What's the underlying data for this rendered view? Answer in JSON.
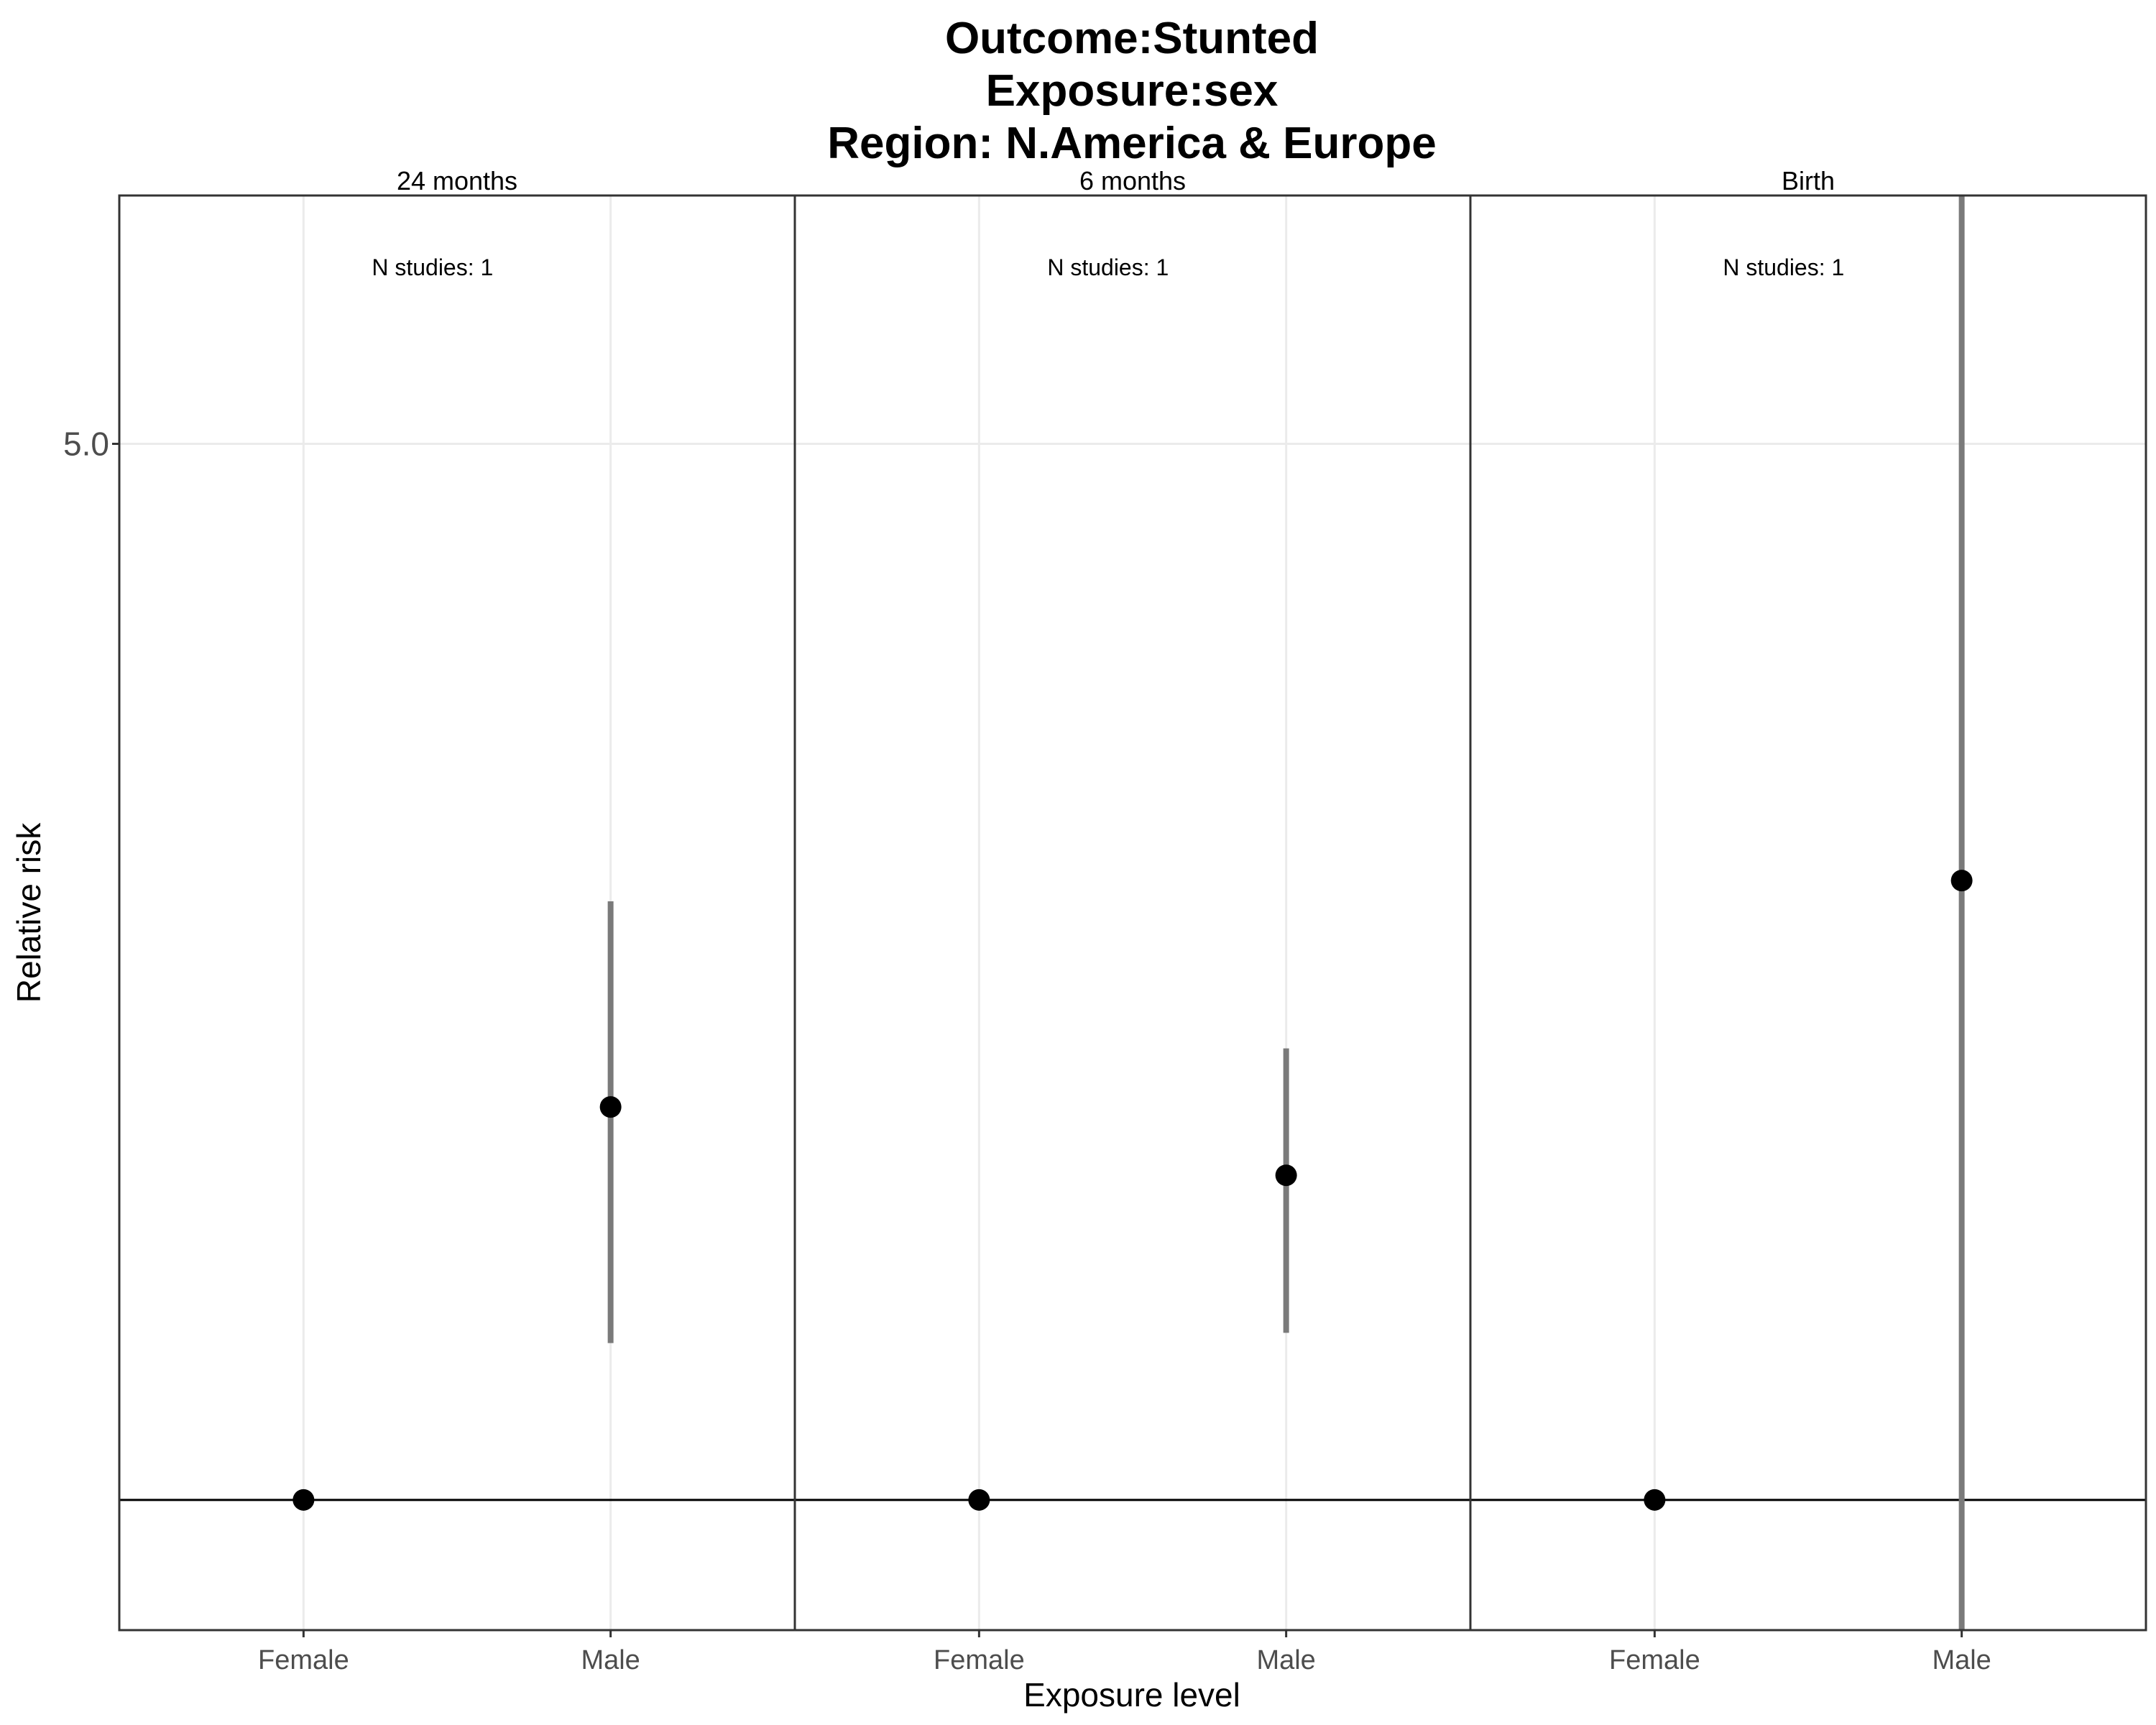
{
  "chart_data": {
    "type": "scatter",
    "subtype": "point-range faceted",
    "title": [
      "Outcome:Stunted",
      "Exposure:sex",
      "Region: N.America & Europe"
    ],
    "xlabel": "Exposure level",
    "ylabel": "Relative risk",
    "y_scale": "log",
    "ylim": [
      0.82,
      7.3
    ],
    "y_ticks": [
      5.0
    ],
    "y_tick_labels": [
      "5.0"
    ],
    "reference_line": 1,
    "grid": true,
    "categories": [
      "Female",
      "Male"
    ],
    "panels": [
      {
        "label": "24 months",
        "annotation": "N studies: 1",
        "points": [
          {
            "x": "Female",
            "y": 1.0,
            "lower": null,
            "upper": null
          },
          {
            "x": "Male",
            "y": 1.82,
            "lower": 1.27,
            "upper": 2.49
          }
        ]
      },
      {
        "label": "6 months",
        "annotation": "N studies: 1",
        "points": [
          {
            "x": "Female",
            "y": 1.0,
            "lower": null,
            "upper": null
          },
          {
            "x": "Male",
            "y": 1.64,
            "lower": 1.29,
            "upper": 1.99
          }
        ]
      },
      {
        "label": "Birth",
        "annotation": "N studies: 1",
        "points": [
          {
            "x": "Female",
            "y": 1.0,
            "lower": null,
            "upper": null
          },
          {
            "x": "Male",
            "y": 2.57,
            "lower": 0.77,
            "upper": 8.9
          }
        ]
      }
    ]
  },
  "colors": {
    "point": "#000000",
    "errorbar": "#7a7a7a",
    "grid": "#ebebeb",
    "panel_border": "#333333",
    "reference_line": "#000000"
  }
}
